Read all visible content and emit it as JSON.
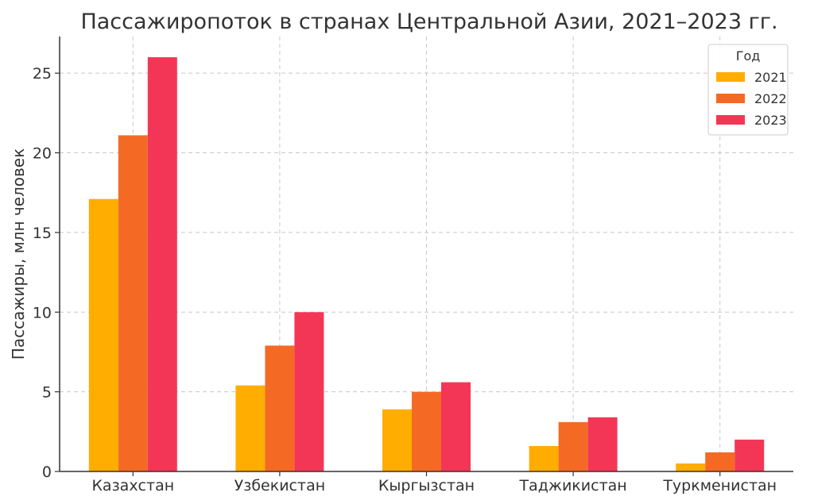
{
  "chart_data": {
    "type": "bar",
    "title": "Пассажиропоток в странах Центральной Азии, 2021–2023 гг.",
    "xlabel": "",
    "ylabel": "Пассажиры, млн человек",
    "categories": [
      "Казахстан",
      "Узбекистан",
      "Кыргызстан",
      "Таджикистан",
      "Туркменистан"
    ],
    "series": [
      {
        "name": "2021",
        "color": "#FFAD00",
        "values": [
          17.1,
          5.4,
          3.9,
          1.6,
          0.5
        ]
      },
      {
        "name": "2022",
        "color": "#F46A25",
        "values": [
          21.1,
          7.9,
          5.0,
          3.1,
          1.2
        ]
      },
      {
        "name": "2023",
        "color": "#F43656",
        "values": [
          26.0,
          10.0,
          5.6,
          3.4,
          2.0
        ]
      }
    ],
    "ylim": [
      0,
      27.3
    ],
    "yticks": [
      0,
      5,
      10,
      15,
      20,
      25
    ],
    "grid": true,
    "legend": {
      "title": "Год",
      "placement": "top-right"
    }
  }
}
